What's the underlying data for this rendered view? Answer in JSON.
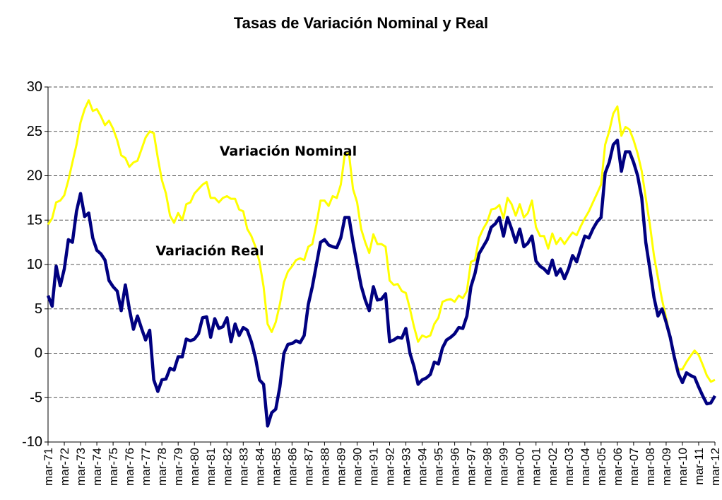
{
  "chart_data": {
    "type": "line",
    "title": "Tasas de Variación Nominal y Real",
    "annotations": [
      {
        "text": "Variación Nominal"
      },
      {
        "text": "Variación Real"
      }
    ],
    "categories": [
      "mar-71",
      null,
      null,
      null,
      "mar-72",
      null,
      null,
      null,
      "mar-73",
      null,
      null,
      null,
      "mar-74",
      null,
      null,
      null,
      "mar-75",
      null,
      null,
      null,
      "mar-76",
      null,
      null,
      null,
      "mar-77",
      null,
      null,
      null,
      "mar-78",
      null,
      null,
      null,
      "mar-79",
      null,
      null,
      null,
      "mar-80",
      null,
      null,
      null,
      "mar-81",
      null,
      null,
      null,
      "mar-82",
      null,
      null,
      null,
      "mar-83",
      null,
      null,
      null,
      "mar-84",
      null,
      null,
      null,
      "mar-85",
      null,
      null,
      null,
      "mar-86",
      null,
      null,
      null,
      "mar-87",
      null,
      null,
      null,
      "mar-88",
      null,
      null,
      null,
      "mar-89",
      null,
      null,
      null,
      "mar-90",
      null,
      null,
      null,
      "mar-91",
      null,
      null,
      null,
      "mar-92",
      null,
      null,
      null,
      "mar-93",
      null,
      null,
      null,
      "mar-94",
      null,
      null,
      null,
      "mar-95",
      null,
      null,
      null,
      "mar-96",
      null,
      null,
      null,
      "mar-97",
      null,
      null,
      null,
      "mar-98",
      null,
      null,
      null,
      "mar-99",
      null,
      null,
      null,
      "mar-00",
      null,
      null,
      null,
      "mar-01",
      null,
      null,
      null,
      "mar-02",
      null,
      null,
      null,
      "mar-03",
      null,
      null,
      null,
      "mar-04",
      null,
      null,
      null,
      "mar-05",
      null,
      null,
      null,
      "mar-06",
      null,
      null,
      null,
      "mar-07",
      null,
      null,
      null,
      "mar-08",
      null,
      null,
      null,
      "mar-09",
      null,
      null,
      null,
      "mar-10",
      null,
      null,
      null,
      "mar-11",
      null,
      null,
      null,
      "mar-12"
    ],
    "series": [
      {
        "name": "Variación Nominal",
        "color": "#ffff00",
        "width": 3,
        "values": [
          14.5,
          15.2,
          17.0,
          17.2,
          17.8,
          19.5,
          21.5,
          23.5,
          26.0,
          27.5,
          28.5,
          27.3,
          27.5,
          26.7,
          25.7,
          26.2,
          25.3,
          24.0,
          22.3,
          22.0,
          21.0,
          21.5,
          21.7,
          23.0,
          24.3,
          25.0,
          24.8,
          22.0,
          19.5,
          18.0,
          15.5,
          14.7,
          15.8,
          15.0,
          16.8,
          17.0,
          18.0,
          18.5,
          19.0,
          19.3,
          17.5,
          17.5,
          17.0,
          17.5,
          17.7,
          17.4,
          17.4,
          16.2,
          16.0,
          14.0,
          13.2,
          12.0,
          10.3,
          7.5,
          3.3,
          2.4,
          3.5,
          5.5,
          8.0,
          9.2,
          9.8,
          10.5,
          10.7,
          10.5,
          12.0,
          12.3,
          14.5,
          17.2,
          17.2,
          16.6,
          17.7,
          17.5,
          19.0,
          22.5,
          22.5,
          18.5,
          17.0,
          14.0,
          12.5,
          11.3,
          13.4,
          12.3,
          12.3,
          12.0,
          8.2,
          7.7,
          7.8,
          7.0,
          6.8,
          5.0,
          3.0,
          1.3,
          2.0,
          1.8,
          2.0,
          3.3,
          4.0,
          5.8,
          6.0,
          6.1,
          5.8,
          6.5,
          6.2,
          7.0,
          10.3,
          10.5,
          13.0,
          14.0,
          14.8,
          16.2,
          16.3,
          16.7,
          15.2,
          17.5,
          16.8,
          15.5,
          16.8,
          15.3,
          15.8,
          17.2,
          14.2,
          13.2,
          13.2,
          11.8,
          13.5,
          12.3,
          13.0,
          12.3,
          13.0,
          13.6,
          13.3,
          14.3,
          15.2,
          16.0,
          17.0,
          18.0,
          19.0,
          23.5,
          25.0,
          27.0,
          27.8,
          24.5,
          25.5,
          25.2,
          24.0,
          22.5,
          20.5,
          17.5,
          14.5,
          11.0,
          8.5,
          6.0,
          4.0,
          1.8,
          -0.4,
          -1.8,
          -1.8,
          -1.0,
          -0.3,
          0.3,
          -0.2,
          -1.3,
          -2.5,
          -3.2,
          -3.0
        ]
      },
      {
        "name": "Variación Real",
        "color": "#000080",
        "width": 4.5,
        "values": [
          6.5,
          5.3,
          9.8,
          7.6,
          9.5,
          12.8,
          12.5,
          16.0,
          18.0,
          15.4,
          15.8,
          13.0,
          11.6,
          11.2,
          10.5,
          8.2,
          7.5,
          7.0,
          4.8,
          7.7,
          5.0,
          2.7,
          4.2,
          2.8,
          1.5,
          2.6,
          -3.0,
          -4.3,
          -3.0,
          -2.9,
          -1.7,
          -1.9,
          -0.4,
          -0.4,
          1.6,
          1.4,
          1.6,
          2.2,
          4.0,
          4.1,
          1.8,
          3.9,
          2.8,
          3.0,
          4.0,
          1.3,
          3.3,
          2.0,
          2.9,
          2.6,
          1.3,
          -0.5,
          -3.0,
          -3.5,
          -8.2,
          -6.7,
          -6.3,
          -3.8,
          0.0,
          1.0,
          1.1,
          1.4,
          1.2,
          2.0,
          5.5,
          7.5,
          10.0,
          12.5,
          12.8,
          12.2,
          12.0,
          11.9,
          13.0,
          15.3,
          15.3,
          12.5,
          10.0,
          7.6,
          6.0,
          4.8,
          7.5,
          6.0,
          6.1,
          6.7,
          1.3,
          1.5,
          1.8,
          1.7,
          2.8,
          0.0,
          -1.5,
          -3.5,
          -3.0,
          -2.8,
          -2.4,
          -1.0,
          -1.2,
          0.6,
          1.5,
          1.8,
          2.2,
          2.9,
          2.8,
          4.2,
          7.5,
          9.0,
          11.2,
          12.0,
          12.8,
          14.2,
          14.6,
          15.3,
          13.2,
          15.3,
          14.0,
          12.5,
          14.0,
          12.0,
          12.4,
          13.2,
          10.4,
          9.8,
          9.5,
          9.0,
          10.5,
          8.8,
          9.5,
          8.4,
          9.5,
          11.0,
          10.3,
          11.8,
          13.2,
          13.0,
          14.0,
          14.8,
          15.3,
          20.3,
          21.5,
          23.5,
          24.0,
          20.5,
          22.7,
          22.7,
          21.5,
          20.0,
          17.5,
          12.5,
          9.5,
          6.3,
          4.2,
          5.0,
          3.5,
          1.8,
          -0.4,
          -2.3,
          -3.3,
          -2.2,
          -2.5,
          -2.7,
          -3.8,
          -4.8,
          -5.7,
          -5.6,
          -4.8
        ]
      }
    ],
    "ylim": [
      -10,
      30
    ],
    "yticks": [
      -10,
      -5,
      0,
      5,
      10,
      15,
      20,
      25,
      30
    ],
    "grid": true
  }
}
